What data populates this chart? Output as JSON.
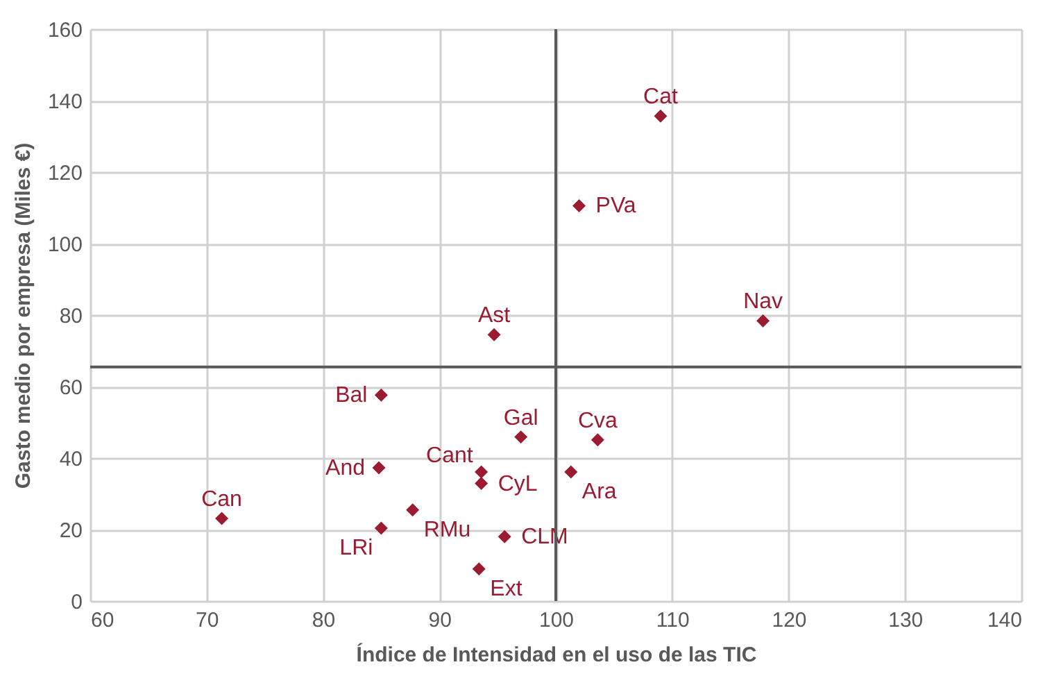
{
  "chart_data": {
    "type": "scatter",
    "xlabel": "Índice de Intensidad en el uso de las TIC",
    "ylabel": "Gasto medio por empresa (Miles €)",
    "xlim": [
      60,
      140
    ],
    "xticks": [
      60,
      70,
      80,
      90,
      100,
      110,
      120,
      130,
      140
    ],
    "ylim": [
      0,
      160
    ],
    "yticks": [
      0,
      20,
      40,
      60,
      80,
      100,
      120,
      140,
      160
    ],
    "grid": true,
    "marker": "diamond",
    "x": [
      109.0,
      102.0,
      117.8,
      94.7,
      85.0,
      97.0,
      103.6,
      84.8,
      93.6,
      101.3,
      93.6,
      71.3,
      87.7,
      85.0,
      95.6,
      93.4
    ],
    "series": [
      {
        "color": "#9b1b30",
        "values": [
          135.7,
          110.6,
          78.4,
          74.5,
          57.6,
          45.9,
          45.1,
          37.3,
          36.1,
          36.1,
          32.9,
          23.1,
          25.5,
          20.4,
          18.0,
          9.0
        ]
      }
    ],
    "value_labels": [
      "Cat",
      "PVa",
      "Nav",
      "Ast",
      "Bal",
      "Gal",
      "Cva",
      "And",
      "Cant",
      "Ara",
      "CyL",
      "Can",
      "RMu",
      "LRi",
      "CLM",
      "Ext"
    ],
    "ref_lines": [
      {
        "axis": "x",
        "value": 100,
        "label": null,
        "color": "#595959"
      },
      {
        "axis": "y",
        "value": 65.5,
        "label": null,
        "color": "#595959"
      }
    ]
  }
}
